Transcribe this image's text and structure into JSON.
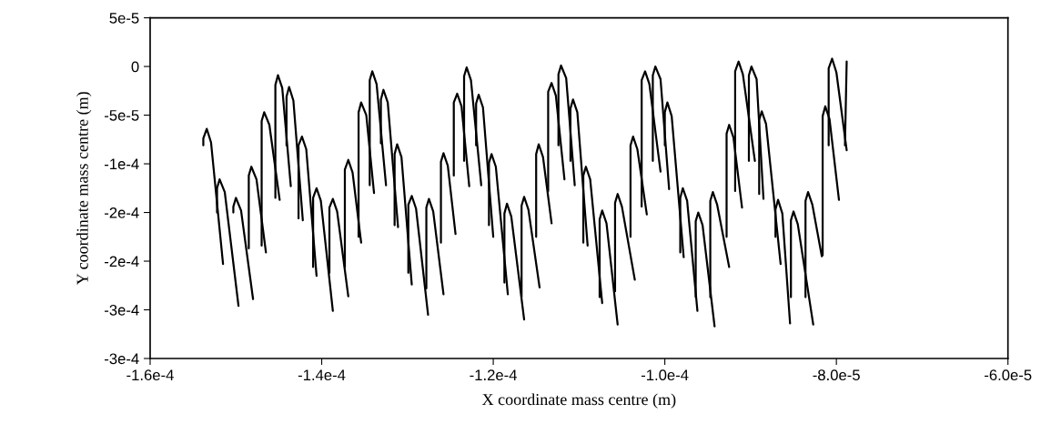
{
  "chart_data": {
    "type": "line",
    "xlabel": "X coordinate mass centre (m)",
    "ylabel": "Y coordinate mass centre (m)",
    "xlim": [
      -0.00016,
      -6e-05
    ],
    "xticks": [
      {
        "value": -0.00016,
        "label": "-1.6e-4"
      },
      {
        "value": -0.00014,
        "label": "-1.4e-4"
      },
      {
        "value": -0.00012,
        "label": "-1.2e-4"
      },
      {
        "value": -0.0001,
        "label": "-1.0e-4"
      },
      {
        "value": -8e-05,
        "label": "-8.0e-5"
      },
      {
        "value": -6e-05,
        "label": "-6.0e-5"
      }
    ],
    "ylim": [
      -0.0003,
      5e-05
    ],
    "yticks": [
      {
        "value": 5e-05,
        "label": "5e-5"
      },
      {
        "value": 0,
        "label": "0"
      },
      {
        "value": -5e-05,
        "label": "-5e-5"
      },
      {
        "value": -0.0001,
        "label": "-1e-4"
      },
      {
        "value": -0.00015,
        "label": "-2e-4"
      },
      {
        "value": -0.0002,
        "label": "-2e-4"
      },
      {
        "value": -0.00025,
        "label": "-3e-4"
      },
      {
        "value": -0.0003,
        "label": "-3e-4"
      }
    ],
    "grid": false,
    "marker": "none",
    "line_style": "solid",
    "series": [
      {
        "color": "#000000",
        "x": [
          -0.0001538,
          -0.0001538,
          -0.0001534,
          -0.0001529,
          -0.0001515
        ],
        "values": [
          -8.1e-05,
          -7.4e-05,
          -6.4e-05,
          -7.8e-05,
          -0.000203
        ]
      },
      {
        "color": "#000000",
        "x": [
          -0.0001522,
          -0.0001522,
          -0.0001519,
          -0.0001513,
          -0.0001497
        ],
        "values": [
          -0.00015,
          -0.000125,
          -0.000116,
          -0.000129,
          -0.000246
        ]
      },
      {
        "color": "#000000",
        "x": [
          -0.0001503,
          -0.0001503,
          -0.00015,
          -0.0001494,
          -0.000148
        ],
        "values": [
          -0.00015,
          -0.000144,
          -0.000135,
          -0.000148,
          -0.000239
        ]
      },
      {
        "color": "#000000",
        "x": [
          -0.0001485,
          -0.0001485,
          -0.0001482,
          -0.0001476,
          -0.0001465
        ],
        "values": [
          -0.000187,
          -0.000112,
          -0.000103,
          -0.000116,
          -0.000191
        ]
      },
      {
        "color": "#000000",
        "x": [
          -0.000147,
          -0.000147,
          -0.0001467,
          -0.0001461,
          -0.0001449
        ],
        "values": [
          -0.000184,
          -5.6e-05,
          -4.7e-05,
          -6e-05,
          -0.000137
        ]
      },
      {
        "color": "#000000",
        "x": [
          -0.0001454,
          -0.0001454,
          -0.0001451,
          -0.0001446,
          -0.0001436
        ],
        "values": [
          -0.000135,
          -1.9e-05,
          -9e-06,
          -2.2e-05,
          -0.000123
        ]
      },
      {
        "color": "#000000",
        "x": [
          -0.0001441,
          -0.0001441,
          -0.0001438,
          -0.0001433,
          -0.0001422
        ],
        "values": [
          -8.1e-05,
          -3.1e-05,
          -2.1e-05,
          -3.5e-05,
          -0.000158
        ]
      },
      {
        "color": "#000000",
        "x": [
          -0.0001427,
          -0.0001427,
          -0.0001423,
          -0.0001418,
          -0.0001406
        ],
        "values": [
          -0.000156,
          -8.1e-05,
          -7.2e-05,
          -8.5e-05,
          -0.000215
        ]
      },
      {
        "color": "#000000",
        "x": [
          -0.000141,
          -0.000141,
          -0.0001406,
          -0.0001401,
          -0.0001387
        ],
        "values": [
          -0.000206,
          -0.000135,
          -0.000125,
          -0.000138,
          -0.000251
        ]
      },
      {
        "color": "#000000",
        "x": [
          -0.0001391,
          -0.0001391,
          -0.0001387,
          -0.0001382,
          -0.0001369
        ],
        "values": [
          -0.000212,
          -0.000145,
          -0.000136,
          -0.000149,
          -0.000236
        ]
      },
      {
        "color": "#000000",
        "x": [
          -0.0001373,
          -0.0001373,
          -0.0001369,
          -0.0001364,
          -0.0001354
        ],
        "values": [
          -0.000206,
          -0.000106,
          -9.6e-05,
          -0.000109,
          -0.000181
        ]
      },
      {
        "color": "#000000",
        "x": [
          -0.0001357,
          -0.0001357,
          -0.0001354,
          -0.0001348,
          -0.0001339
        ],
        "values": [
          -0.000175,
          -4.7e-05,
          -3.7e-05,
          -5e-05,
          -0.00013
        ]
      },
      {
        "color": "#000000",
        "x": [
          -0.0001344,
          -0.0001344,
          -0.0001341,
          -0.0001336,
          -0.0001325
        ],
        "values": [
          -0.000122,
          -1.4e-05,
          -5e-06,
          -1.8e-05,
          -0.000122
        ]
      },
      {
        "color": "#000000",
        "x": [
          -0.0001331,
          -0.0001331,
          -0.0001328,
          -0.0001323,
          -0.0001311
        ],
        "values": [
          -7.9e-05,
          -3.4e-05,
          -2.4e-05,
          -3.7e-05,
          -0.000165
        ]
      },
      {
        "color": "#000000",
        "x": [
          -0.0001315,
          -0.0001315,
          -0.0001312,
          -0.0001307,
          -0.0001295
        ],
        "values": [
          -0.000163,
          -9e-05,
          -8e-05,
          -9.3e-05,
          -0.000224
        ]
      },
      {
        "color": "#000000",
        "x": [
          -0.0001299,
          -0.0001299,
          -0.0001295,
          -0.000129,
          -0.0001276
        ],
        "values": [
          -0.000212,
          -0.000142,
          -0.000133,
          -0.000146,
          -0.000255
        ]
      },
      {
        "color": "#000000",
        "x": [
          -0.0001278,
          -0.0001278,
          -0.0001275,
          -0.000127,
          -0.0001258
        ],
        "values": [
          -0.000228,
          -0.000145,
          -0.000136,
          -0.000149,
          -0.000234
        ]
      },
      {
        "color": "#000000",
        "x": [
          -0.0001261,
          -0.0001261,
          -0.0001258,
          -0.0001253,
          -0.0001244
        ],
        "values": [
          -0.000181,
          -9.8e-05,
          -8.9e-05,
          -0.000102,
          -0.000172
        ]
      },
      {
        "color": "#000000",
        "x": [
          -0.0001246,
          -0.0001246,
          -0.0001242,
          -0.0001237,
          -0.0001228
        ],
        "values": [
          -0.000112,
          -3.7e-05,
          -2.8e-05,
          -4.1e-05,
          -0.000123
        ]
      },
      {
        "color": "#000000",
        "x": [
          -0.0001234,
          -0.0001234,
          -0.0001231,
          -0.0001226,
          -0.0001214
        ],
        "values": [
          -9.7e-05,
          -1e-05,
          -1e-06,
          -1.4e-05,
          -0.000122
        ]
      },
      {
        "color": "#000000",
        "x": [
          -0.000122,
          -0.000122,
          -0.0001217,
          -0.0001212,
          -0.00012
        ],
        "values": [
          -8.1e-05,
          -3.8e-05,
          -2.9e-05,
          -4.2e-05,
          -0.000175
        ]
      },
      {
        "color": "#000000",
        "x": [
          -0.0001205,
          -0.0001205,
          -0.0001202,
          -0.0001197,
          -0.0001183
        ],
        "values": [
          -0.000163,
          -9.9e-05,
          -9e-05,
          -0.000103,
          -0.000234
        ]
      },
      {
        "color": "#000000",
        "x": [
          -0.0001187,
          -0.0001187,
          -0.0001184,
          -0.0001179,
          -0.0001164
        ],
        "values": [
          -0.000222,
          -0.000151,
          -0.000141,
          -0.000154,
          -0.00026
        ]
      },
      {
        "color": "#000000",
        "x": [
          -0.0001167,
          -0.0001167,
          -0.0001164,
          -0.0001159,
          -0.0001146
        ],
        "values": [
          -0.000237,
          -0.000143,
          -0.000134,
          -0.000147,
          -0.000227
        ]
      },
      {
        "color": "#000000",
        "x": [
          -0.000115,
          -0.000115,
          -0.0001147,
          -0.0001142,
          -0.0001132
        ],
        "values": [
          -0.000175,
          -9e-05,
          -8e-05,
          -9.3e-05,
          -0.000161
        ]
      },
      {
        "color": "#000000",
        "x": [
          -0.0001136,
          -0.0001136,
          -0.0001132,
          -0.0001127,
          -0.0001117
        ],
        "values": [
          -0.000128,
          -2.6e-05,
          -1.7e-05,
          -3e-05,
          -0.000116
        ]
      },
      {
        "color": "#000000",
        "x": [
          -0.0001124,
          -0.0001124,
          -0.0001121,
          -0.0001115,
          -0.0001105
        ],
        "values": [
          -8.1e-05,
          -8e-06,
          1e-06,
          -1.2e-05,
          -0.000122
        ]
      },
      {
        "color": "#000000",
        "x": [
          -0.000111,
          -0.000111,
          -0.0001107,
          -0.0001102,
          -0.000109
        ],
        "values": [
          -9.7e-05,
          -4.3e-05,
          -3.4e-05,
          -4.7e-05,
          -0.000184
        ]
      },
      {
        "color": "#000000",
        "x": [
          -0.0001095,
          -0.0001095,
          -0.0001092,
          -0.0001087,
          -0.0001073
        ],
        "values": [
          -0.000181,
          -0.000112,
          -0.000103,
          -0.000116,
          -0.000243
        ]
      },
      {
        "color": "#000000",
        "x": [
          -0.0001076,
          -0.0001076,
          -0.0001073,
          -0.0001068,
          -0.0001055
        ],
        "values": [
          -0.000237,
          -0.000157,
          -0.000148,
          -0.000161,
          -0.000265
        ]
      },
      {
        "color": "#000000",
        "x": [
          -0.0001058,
          -0.0001058,
          -0.0001055,
          -0.000105,
          -0.0001035
        ],
        "values": [
          -0.000231,
          -0.00014,
          -0.000131,
          -0.000144,
          -0.000219
        ]
      },
      {
        "color": "#000000",
        "x": [
          -0.000104,
          -0.000104,
          -0.0001037,
          -0.0001032,
          -0.0001021
        ],
        "values": [
          -0.000175,
          -8.1e-05,
          -7.2e-05,
          -8.5e-05,
          -0.000152
        ]
      },
      {
        "color": "#000000",
        "x": [
          -0.0001027,
          -0.0001027,
          -0.0001023,
          -0.0001018,
          -0.0001005
        ],
        "values": [
          -0.000144,
          -1.4e-05,
          -5e-06,
          -1.8e-05,
          -0.000108
        ]
      },
      {
        "color": "#000000",
        "x": [
          -0.0001014,
          -0.0001014,
          -0.0001011,
          -0.0001005,
          -9.95e-05
        ],
        "values": [
          -9.7e-05,
          -9e-06,
          0,
          -1.3e-05,
          -0.000126
        ]
      },
      {
        "color": "#000000",
        "x": [
          -0.0001,
          -0.0001,
          -9.97e-05,
          -9.92e-05,
          -9.78e-05
        ],
        "values": [
          -8.1e-05,
          -4.7e-05,
          -3.7e-05,
          -5.1e-05,
          -0.000196
        ]
      },
      {
        "color": "#000000",
        "x": [
          -9.82e-05,
          -9.82e-05,
          -9.79e-05,
          -9.74e-05,
          -9.62e-05
        ],
        "values": [
          -0.000191,
          -0.000135,
          -0.000125,
          -0.000138,
          -0.000251
        ]
      },
      {
        "color": "#000000",
        "x": [
          -9.64e-05,
          -9.64e-05,
          -9.61e-05,
          -9.56e-05,
          -9.42e-05
        ],
        "values": [
          -0.000237,
          -0.000159,
          -0.00015,
          -0.000163,
          -0.000267
        ]
      },
      {
        "color": "#000000",
        "x": [
          -9.47e-05,
          -9.47e-05,
          -9.44e-05,
          -9.39e-05,
          -9.25e-05
        ],
        "values": [
          -0.000237,
          -0.000138,
          -0.000129,
          -0.000142,
          -0.000206
        ]
      },
      {
        "color": "#000000",
        "x": [
          -9.28e-05,
          -9.28e-05,
          -9.25e-05,
          -9.2e-05,
          -9.1e-05
        ],
        "values": [
          -0.000175,
          -6.9e-05,
          -6e-05,
          -7.3e-05,
          -0.000145
        ]
      },
      {
        "color": "#000000",
        "x": [
          -9.18e-05,
          -9.18e-05,
          -9.14e-05,
          -9.09e-05,
          -8.95e-05
        ],
        "values": [
          -0.000128,
          -5e-06,
          5e-06,
          -8e-06,
          -9.7e-05
        ]
      },
      {
        "color": "#000000",
        "x": [
          -9.02e-05,
          -9.02e-05,
          -8.99e-05,
          -8.93e-05,
          -8.85e-05
        ],
        "values": [
          -9.7e-05,
          -9e-06,
          0,
          -1.3e-05,
          -0.000136
        ]
      },
      {
        "color": "#000000",
        "x": [
          -8.9e-05,
          -8.9e-05,
          -8.87e-05,
          -8.82e-05,
          -8.65e-05
        ],
        "values": [
          -0.000131,
          -5.5e-05,
          -4.6e-05,
          -5.9e-05,
          -0.000203
        ]
      },
      {
        "color": "#000000",
        "x": [
          -8.71e-05,
          -8.71e-05,
          -8.68e-05,
          -8.63e-05,
          -8.54e-05
        ],
        "values": [
          -0.000175,
          -0.000147,
          -0.000137,
          -0.000151,
          -0.000264
        ]
      },
      {
        "color": "#000000",
        "x": [
          -8.53e-05,
          -8.53e-05,
          -8.5e-05,
          -8.45e-05,
          -8.27e-05
        ],
        "values": [
          -0.000237,
          -0.000158,
          -0.000149,
          -0.000162,
          -0.000265
        ]
      },
      {
        "color": "#000000",
        "x": [
          -8.36e-05,
          -8.36e-05,
          -8.33e-05,
          -8.28e-05,
          -8.17e-05
        ],
        "values": [
          -0.000237,
          -0.000138,
          -0.000129,
          -0.000142,
          -0.000195
        ]
      },
      {
        "color": "#000000",
        "x": [
          -8.16e-05,
          -8.16e-05,
          -8.13e-05,
          -8.08e-05,
          -7.97e-05
        ],
        "values": [
          -0.000194,
          -5.1e-05,
          -4.1e-05,
          -5.4e-05,
          -0.000137
        ]
      },
      {
        "color": "#000000",
        "x": [
          -8.09e-05,
          -8.09e-05,
          -8.05e-05,
          -8e-05,
          -7.88e-05
        ],
        "values": [
          -8.1e-05,
          -2e-06,
          8e-06,
          -6e-06,
          -8.6e-05
        ]
      },
      {
        "color": "#000000",
        "x": [
          -7.9e-05,
          -7.88e-05
        ],
        "values": [
          -8.1e-05,
          5e-06
        ]
      }
    ]
  }
}
